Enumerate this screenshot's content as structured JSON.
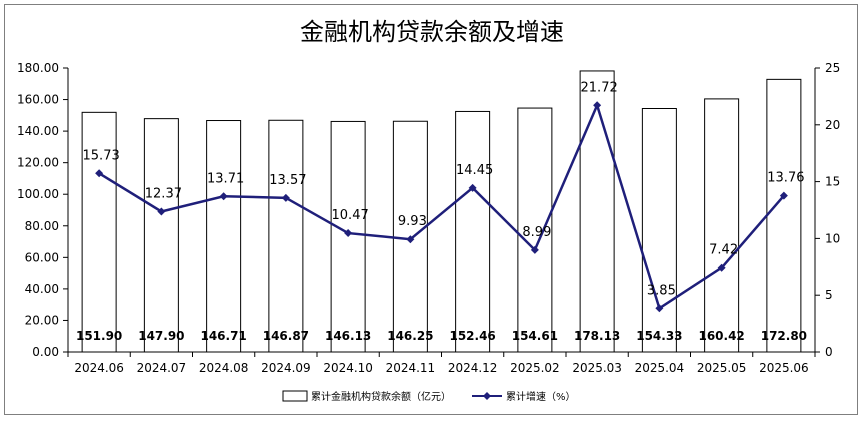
{
  "chart_data": {
    "type": "bar",
    "title": "金融机构贷款余额及增速",
    "categories": [
      "2024.06",
      "2024.07",
      "2024.08",
      "2024.09",
      "2024.10",
      "2024.11",
      "2024.12",
      "2025.02",
      "2025.03",
      "2025.04",
      "2025.05",
      "2025.06"
    ],
    "series": [
      {
        "name": "累计金融机构贷款余额（亿元）",
        "type": "bar",
        "axis": "left",
        "color": "#ffffff",
        "values": [
          151.9,
          147.9,
          146.71,
          146.87,
          146.13,
          146.25,
          152.46,
          154.61,
          178.13,
          154.33,
          160.42,
          172.8
        ]
      },
      {
        "name": "累计增速（%）",
        "type": "line",
        "axis": "right",
        "color": "#1f1f7a",
        "values": [
          15.73,
          12.37,
          13.71,
          13.57,
          10.47,
          9.93,
          14.45,
          8.99,
          21.72,
          3.85,
          7.42,
          13.76
        ]
      }
    ],
    "y_left": {
      "min": 0,
      "max": 180,
      "step": 20,
      "tick_labels": [
        "0.00",
        "20.00",
        "40.00",
        "60.00",
        "80.00",
        "100.00",
        "120.00",
        "140.00",
        "160.00",
        "180.00"
      ]
    },
    "y_right": {
      "min": 0,
      "max": 25,
      "step": 5,
      "tick_labels": [
        "0",
        "5",
        "10",
        "15",
        "20",
        "25"
      ]
    },
    "bar_labels": [
      "151.90",
      "147.90",
      "146.71",
      "146.87",
      "146.13",
      "146.25",
      "152.46",
      "154.61",
      "178.13",
      "154.33",
      "160.42",
      "172.80"
    ],
    "line_labels": [
      "15.73",
      "12.37",
      "13.71",
      "13.57",
      "10.47",
      "9.93",
      "14.45",
      "8.99",
      "21.72",
      "3.85",
      "7.42",
      "13.76"
    ],
    "legend": {
      "placement": "bottom",
      "entries": [
        "累计金融机构贷款余额（亿元）",
        "累计增速（%）"
      ]
    },
    "grid": false
  }
}
